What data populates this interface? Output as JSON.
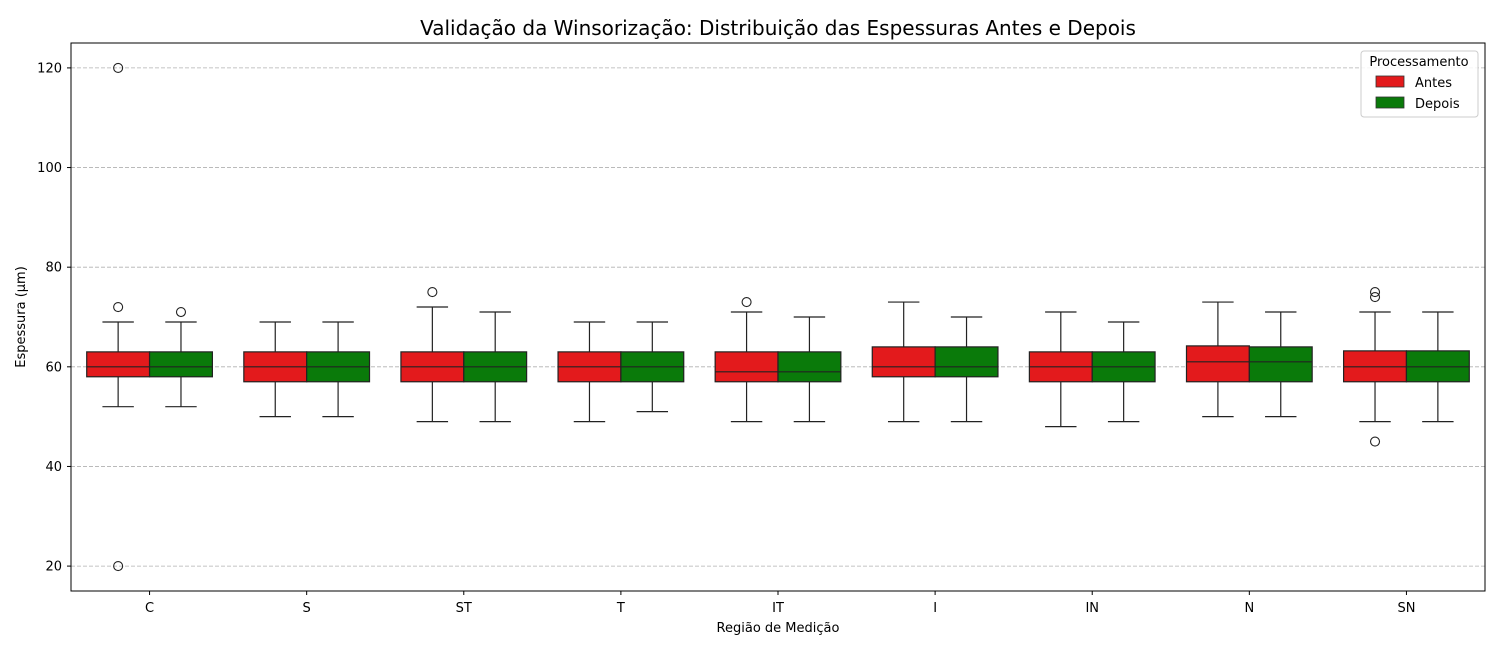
{
  "chart_data": {
    "type": "box",
    "title": "Validação da Winsorização: Distribuição das Espessuras Antes e Depois",
    "xlabel": "Região de Medição",
    "ylabel": "Espessura (µm)",
    "ylim": [
      15,
      125
    ],
    "yticks": [
      20,
      40,
      60,
      80,
      100,
      120
    ],
    "grid": "y-dashed",
    "categories": [
      "C",
      "S",
      "ST",
      "T",
      "IT",
      "I",
      "IN",
      "N",
      "SN"
    ],
    "legend": {
      "title": "Processamento",
      "placement": "top-right"
    },
    "series": [
      {
        "name": "Antes",
        "color": "#e31a1c",
        "boxes": [
          {
            "whisker_low": 52,
            "q1": 58,
            "median": 60,
            "q3": 63,
            "whisker_high": 69,
            "outliers": [
              120,
              72,
              20
            ]
          },
          {
            "whisker_low": 50,
            "q1": 57,
            "median": 60,
            "q3": 63,
            "whisker_high": 69,
            "outliers": []
          },
          {
            "whisker_low": 49,
            "q1": 57,
            "median": 60,
            "q3": 63,
            "whisker_high": 72,
            "outliers": [
              75
            ]
          },
          {
            "whisker_low": 49,
            "q1": 57,
            "median": 60,
            "q3": 63,
            "whisker_high": 69,
            "outliers": []
          },
          {
            "whisker_low": 49,
            "q1": 57,
            "median": 59,
            "q3": 63,
            "whisker_high": 71,
            "outliers": [
              73
            ]
          },
          {
            "whisker_low": 49,
            "q1": 58,
            "median": 60,
            "q3": 64,
            "whisker_high": 73,
            "outliers": []
          },
          {
            "whisker_low": 48,
            "q1": 57,
            "median": 60,
            "q3": 63,
            "whisker_high": 71,
            "outliers": []
          },
          {
            "whisker_low": 50,
            "q1": 57,
            "median": 61,
            "q3": 64.2,
            "whisker_high": 73,
            "outliers": []
          },
          {
            "whisker_low": 49,
            "q1": 57,
            "median": 60,
            "q3": 63.2,
            "whisker_high": 71,
            "outliers": [
              75,
              74,
              45
            ]
          }
        ]
      },
      {
        "name": "Depois",
        "color": "#0a7a0a",
        "boxes": [
          {
            "whisker_low": 52,
            "q1": 58,
            "median": 60,
            "q3": 63,
            "whisker_high": 69,
            "outliers": [
              71
            ]
          },
          {
            "whisker_low": 50,
            "q1": 57,
            "median": 60,
            "q3": 63,
            "whisker_high": 69,
            "outliers": []
          },
          {
            "whisker_low": 49,
            "q1": 57,
            "median": 60,
            "q3": 63,
            "whisker_high": 71,
            "outliers": []
          },
          {
            "whisker_low": 51,
            "q1": 57,
            "median": 60,
            "q3": 63,
            "whisker_high": 69,
            "outliers": []
          },
          {
            "whisker_low": 49,
            "q1": 57,
            "median": 59,
            "q3": 63,
            "whisker_high": 70,
            "outliers": []
          },
          {
            "whisker_low": 49,
            "q1": 58,
            "median": 60,
            "q3": 64,
            "whisker_high": 70,
            "outliers": []
          },
          {
            "whisker_low": 49,
            "q1": 57,
            "median": 60,
            "q3": 63,
            "whisker_high": 69,
            "outliers": []
          },
          {
            "whisker_low": 50,
            "q1": 57,
            "median": 61,
            "q3": 64,
            "whisker_high": 71,
            "outliers": []
          },
          {
            "whisker_low": 49,
            "q1": 57,
            "median": 60,
            "q3": 63.2,
            "whisker_high": 71,
            "outliers": []
          }
        ]
      }
    ]
  }
}
